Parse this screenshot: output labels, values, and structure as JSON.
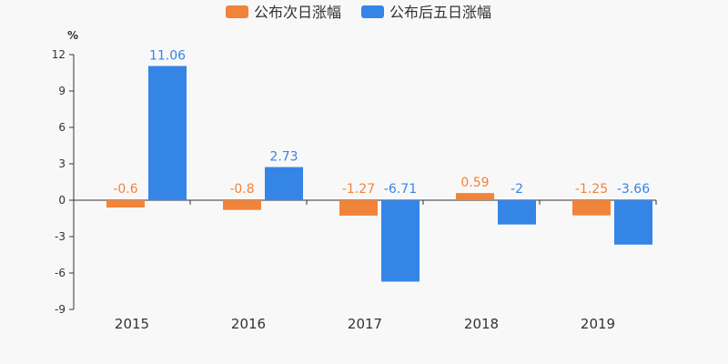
{
  "chart_data": {
    "type": "bar",
    "title": "",
    "xlabel": "",
    "ylabel": "%",
    "categories": [
      "2015",
      "2016",
      "2017",
      "2018",
      "2019"
    ],
    "series": [
      {
        "name": "公布次日涨幅",
        "color": "#f0843a",
        "values": [
          -0.6,
          -0.8,
          -1.27,
          0.59,
          -1.25
        ],
        "labels": [
          "-0.6",
          "-0.8",
          "-1.27",
          "0.59",
          "-1.25"
        ]
      },
      {
        "name": "公布后五日涨幅",
        "color": "#3585e6",
        "values": [
          11.06,
          2.73,
          -6.71,
          -2,
          -3.66
        ],
        "labels": [
          "11.06",
          "2.73",
          "-6.71",
          "-2",
          "-3.66"
        ]
      }
    ],
    "ylim": [
      -9,
      12
    ],
    "yticks": [
      12,
      9,
      6,
      3,
      0,
      -3,
      -6,
      -9
    ],
    "legend_position": "top-center",
    "grid": false
  }
}
